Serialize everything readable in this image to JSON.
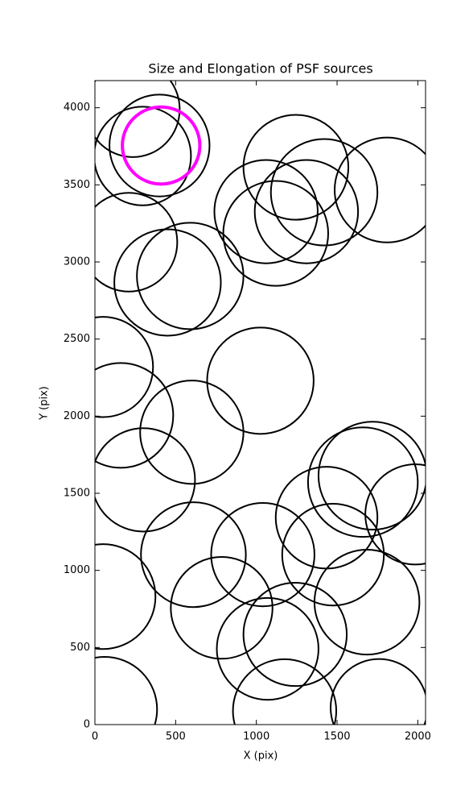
{
  "chart_data": {
    "type": "ellipse",
    "title": "Size and Elongation of PSF sources",
    "x_label": "X (pix)",
    "y_label": "Y (pix)",
    "xlim": [
      0,
      2048
    ],
    "ylim": [
      0,
      4176
    ],
    "xticks": [
      0,
      500,
      1000,
      1500,
      2000
    ],
    "yticks": [
      0,
      500,
      1000,
      1500,
      2000,
      2500,
      3000,
      3500,
      4000
    ],
    "color": "#000000",
    "x": [
      235,
      295,
      400,
      210,
      450,
      590,
      1245,
      1060,
      1420,
      1310,
      1120,
      1810,
      50,
      160,
      600,
      1025,
      300,
      1720,
      1660,
      1985,
      1435,
      1475,
      610,
      1040,
      50,
      785,
      1240,
      1070,
      1685,
      60,
      1175,
      1760
    ],
    "y": [
      3990,
      3687,
      3755,
      3128,
      2867,
      2909,
      3614,
      3326,
      3452,
      3326,
      3185,
      3467,
      2319,
      2005,
      1896,
      2230,
      1587,
      1614,
      1572,
      1363,
      1342,
      1102,
      1102,
      1102,
      830,
      757,
      585,
      491,
      794,
      99,
      89,
      110
    ],
    "width": [
      580,
      600,
      620,
      600,
      660,
      660,
      650,
      640,
      660,
      640,
      650,
      650,
      620,
      650,
      640,
      660,
      640,
      670,
      680,
      620,
      630,
      630,
      650,
      640,
      650,
      630,
      640,
      630,
      650,
      650,
      640,
      600
    ],
    "height": [
      620,
      640,
      660,
      640,
      690,
      690,
      680,
      670,
      690,
      670,
      680,
      680,
      650,
      680,
      670,
      690,
      670,
      700,
      710,
      650,
      660,
      660,
      680,
      670,
      680,
      660,
      670,
      660,
      680,
      680,
      670,
      630
    ],
    "highlight": {
      "x": 410,
      "y": 3755,
      "width": 480,
      "height": 500,
      "color": "#ff00ff"
    }
  }
}
